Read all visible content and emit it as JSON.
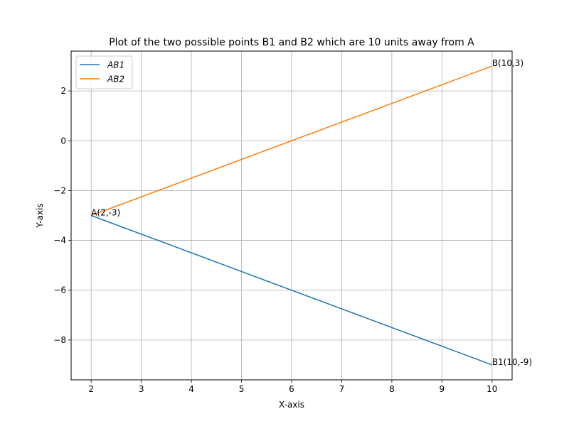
{
  "chart_data": {
    "type": "line",
    "title": "Plot of the two possible points B1 and B2 which are 10 units away from A",
    "xlabel": "X-axis",
    "ylabel": "Y-axis",
    "xlim": [
      1.6,
      10.4
    ],
    "ylim": [
      -9.6,
      3.6
    ],
    "x_ticks": [
      2,
      3,
      4,
      5,
      6,
      7,
      8,
      9,
      10
    ],
    "y_ticks": [
      2,
      0,
      -2,
      -4,
      -6,
      -8
    ],
    "grid": true,
    "legend_position": "top-left",
    "series": [
      {
        "name": "AB1",
        "color": "#1f77b4",
        "x": [
          2,
          10
        ],
        "y": [
          -3,
          -9
        ]
      },
      {
        "name": "AB2",
        "color": "#ff7f0e",
        "x": [
          2,
          10
        ],
        "y": [
          -3,
          3
        ]
      }
    ],
    "annotations": [
      {
        "text": "A(2,-3)",
        "x": 2,
        "y": -3
      },
      {
        "text": "B(10,3)",
        "x": 10,
        "y": 3
      },
      {
        "text": "B1(10,-9)",
        "x": 10,
        "y": -9
      }
    ]
  }
}
